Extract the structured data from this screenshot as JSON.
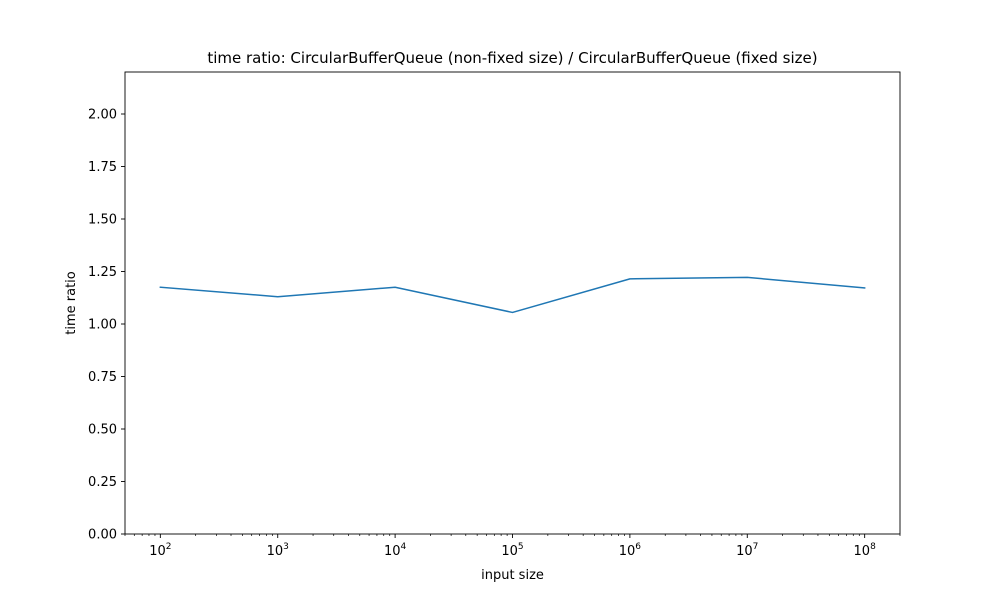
{
  "chart_data": {
    "type": "line",
    "title": "time ratio: CircularBufferQueue (non-fixed size) / CircularBufferQueue (fixed size)",
    "xlabel": "input size",
    "ylabel": "time ratio",
    "x_scale": "log",
    "xlim": [
      50,
      200000000
    ],
    "ylim": [
      0,
      2.2
    ],
    "x_ticks": [
      {
        "base": "10",
        "exp": "2",
        "value": 100
      },
      {
        "base": "10",
        "exp": "3",
        "value": 1000
      },
      {
        "base": "10",
        "exp": "4",
        "value": 10000
      },
      {
        "base": "10",
        "exp": "5",
        "value": 100000
      },
      {
        "base": "10",
        "exp": "6",
        "value": 1000000
      },
      {
        "base": "10",
        "exp": "7",
        "value": 10000000
      },
      {
        "base": "10",
        "exp": "8",
        "value": 100000000
      }
    ],
    "y_ticks": [
      "0.00",
      "0.25",
      "0.50",
      "0.75",
      "1.00",
      "1.25",
      "1.50",
      "1.75",
      "2.00"
    ],
    "grid": false,
    "series": [
      {
        "color": "#1f77b4",
        "x": [
          100,
          1000,
          10000,
          100000,
          1000000,
          10000000,
          100000000
        ],
        "y": [
          1.175,
          1.13,
          1.175,
          1.055,
          1.215,
          1.222,
          1.172
        ]
      }
    ]
  }
}
